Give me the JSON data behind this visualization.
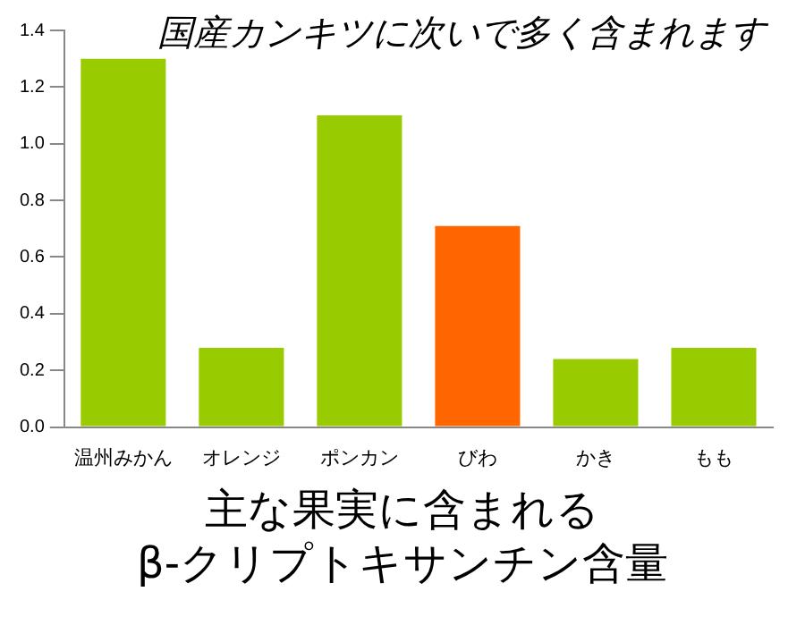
{
  "chart_data": {
    "type": "bar",
    "title": "主な果実に含まれる\nβ-クリプトキサンチン含量",
    "annotations": [
      "国産カンキツに次いで多く含まれます"
    ],
    "categories": [
      "温州みかん",
      "オレンジ",
      "ポンカン",
      "びわ",
      "かき",
      "もも"
    ],
    "values": [
      1.3,
      0.28,
      1.1,
      0.71,
      0.24,
      0.28
    ],
    "colors": [
      "#99cc00",
      "#99cc00",
      "#99cc00",
      "#ff6600",
      "#99cc00",
      "#99cc00"
    ],
    "ylim": [
      0,
      1.4
    ],
    "yticks": [
      {
        "value": 0,
        "label": "0.0"
      },
      0.2,
      0.4,
      0.6,
      0.8,
      {
        "value": 1,
        "label": "1.0"
      },
      1.2,
      1.4
    ],
    "grid": false
  }
}
